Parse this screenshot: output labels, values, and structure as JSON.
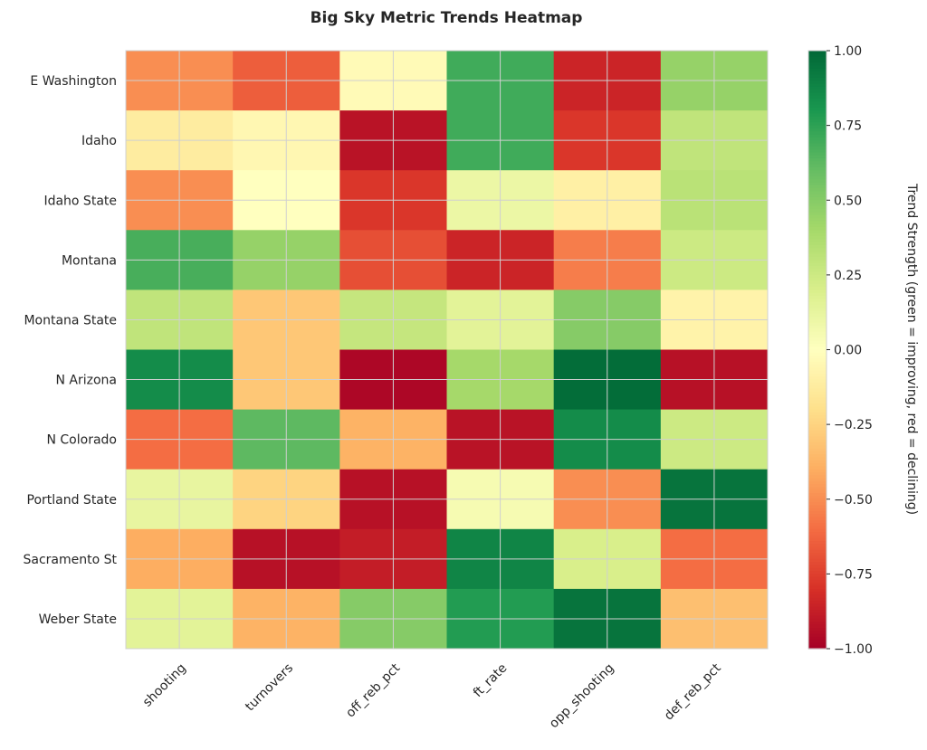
{
  "chart_data": {
    "type": "heatmap",
    "title": "Big Sky Metric Trends Heatmap",
    "xlabel": "",
    "ylabel": "",
    "rows": [
      "E Washington",
      "Idaho",
      "Idaho State",
      "Montana",
      "Montana State",
      "N Arizona",
      "N Colorado",
      "Portland State",
      "Sacramento St",
      "Weber State"
    ],
    "columns": [
      "shooting",
      "turnovers",
      "off_reb_pct",
      "ft_rate",
      "opp_shooting",
      "def_reb_pct"
    ],
    "values": [
      [
        -0.5,
        -0.65,
        -0.03,
        0.7,
        -0.85,
        0.45
      ],
      [
        -0.12,
        -0.05,
        -0.92,
        0.7,
        -0.78,
        0.3
      ],
      [
        -0.5,
        0.0,
        -0.78,
        0.1,
        -0.1,
        0.32
      ],
      [
        0.68,
        0.45,
        -0.7,
        -0.85,
        -0.55,
        0.25
      ],
      [
        0.3,
        -0.3,
        0.28,
        0.15,
        0.5,
        -0.08
      ],
      [
        0.85,
        -0.3,
        -0.97,
        0.4,
        0.98,
        -0.93
      ],
      [
        -0.6,
        0.62,
        -0.38,
        -0.92,
        0.85,
        0.25
      ],
      [
        0.12,
        -0.25,
        -0.93,
        0.05,
        -0.5,
        0.95
      ],
      [
        -0.4,
        -0.93,
        -0.88,
        0.88,
        0.2,
        -0.6
      ],
      [
        0.15,
        -0.38,
        0.5,
        0.78,
        0.95,
        -0.33
      ]
    ],
    "colormap": "RdYlGn",
    "vmin": -1.0,
    "vmax": 1.0,
    "colorbar": {
      "label": "Trend Strength (green = improving, red = declining)",
      "ticks": [
        "1.00",
        "0.75",
        "0.50",
        "0.25",
        "0.00",
        "−0.25",
        "−0.50",
        "−0.75",
        "−1.00"
      ],
      "tick_values": [
        1,
        0.75,
        0.5,
        0.25,
        0,
        -0.25,
        -0.5,
        -0.75,
        -1
      ]
    },
    "grid": true
  }
}
